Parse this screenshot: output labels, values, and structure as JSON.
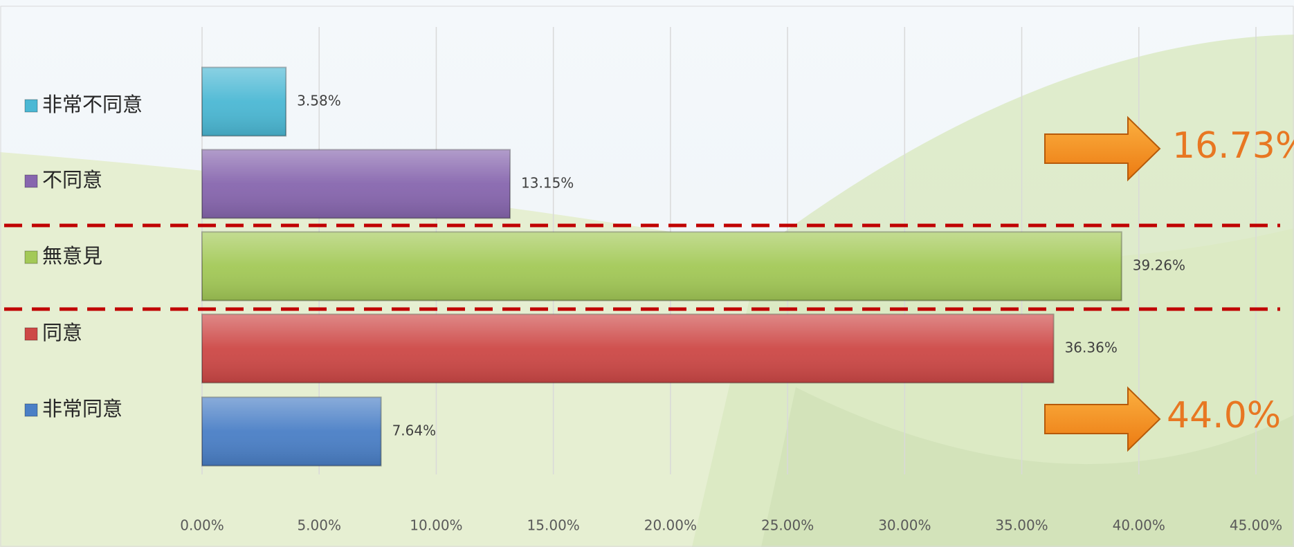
{
  "chart_data": {
    "type": "bar",
    "orientation": "horizontal",
    "categories": [
      "非常不同意",
      "不同意",
      "無意見",
      "同意",
      "非常同意"
    ],
    "values": [
      3.58,
      13.15,
      39.26,
      36.36,
      7.64
    ],
    "value_labels": [
      "3.58%",
      "13.15%",
      "39.26%",
      "36.36%",
      "7.64%"
    ],
    "colors": [
      "#4bb8d4",
      "#8766ae",
      "#a3c957",
      "#cd4846",
      "#4a7fc6"
    ],
    "xlim": [
      0,
      45
    ],
    "xticks": [
      {
        "value": 0,
        "label": "0.00%"
      },
      {
        "value": 5,
        "label": "5.00%"
      },
      {
        "value": 10,
        "label": "10.00%"
      },
      {
        "value": 15,
        "label": "15.00%"
      },
      {
        "value": 20,
        "label": "20.00%"
      },
      {
        "value": 25,
        "label": "25.00%"
      },
      {
        "value": 30,
        "label": "30.00%"
      },
      {
        "value": 35,
        "label": "35.00%"
      },
      {
        "value": 40,
        "label": "40.00%"
      },
      {
        "value": 45,
        "label": "45.00%"
      }
    ],
    "grid": true,
    "legend": "left",
    "annotations": [
      "16.73%",
      "44.0%"
    ]
  }
}
